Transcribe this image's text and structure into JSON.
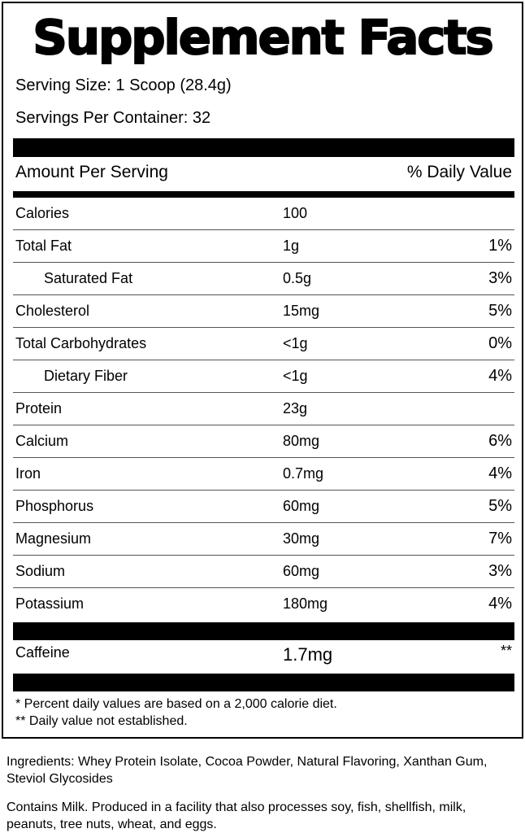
{
  "title": "Supplement Facts",
  "serving_size": "Serving Size: 1 Scoop (28.4g)",
  "servings_per_container": "Servings Per Container: 32",
  "header": {
    "amount": "Amount Per Serving",
    "daily_value": "% Daily Value"
  },
  "nutrients": [
    {
      "name": "Calories",
      "amount": "100",
      "dv": ""
    },
    {
      "name": "Total Fat",
      "amount": "1g",
      "dv": "1%"
    },
    {
      "name": "Saturated Fat",
      "amount": "0.5g",
      "dv": "3%",
      "indent": true
    },
    {
      "name": "Cholesterol",
      "amount": "15mg",
      "dv": "5%"
    },
    {
      "name": "Total Carbohydrates",
      "amount": "<1g",
      "dv": "0%"
    },
    {
      "name": "Dietary Fiber",
      "amount": "<1g",
      "dv": "4%",
      "indent": true
    },
    {
      "name": "Protein",
      "amount": "23g",
      "dv": ""
    },
    {
      "name": "Calcium",
      "amount": "80mg",
      "dv": "6%"
    },
    {
      "name": "Iron",
      "amount": "0.7mg",
      "dv": "4%"
    },
    {
      "name": "Phosphorus",
      "amount": "60mg",
      "dv": "5%"
    },
    {
      "name": "Magnesium",
      "amount": "30mg",
      "dv": "7%"
    },
    {
      "name": "Sodium",
      "amount": "60mg",
      "dv": "3%"
    },
    {
      "name": "Potassium",
      "amount": "180mg",
      "dv": "4%"
    }
  ],
  "caffeine": {
    "name": "Caffeine",
    "amount": "1.7mg",
    "dv": "**"
  },
  "footnotes": [
    "* Percent daily values are based on a 2,000 calorie diet.",
    "** Daily value not established."
  ],
  "ingredients": "Ingredients: Whey Protein Isolate, Cocoa Powder, Natural Flavoring, Xanthan Gum, Steviol Glycosides",
  "allergen": "Contains Milk. Produced in a facility that also processes soy, fish, shellfish, milk, peanuts, tree nuts, wheat, and eggs."
}
